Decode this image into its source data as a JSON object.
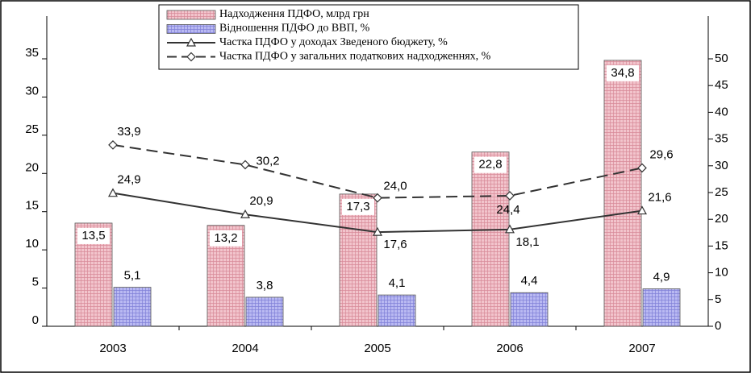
{
  "chart_data": {
    "type": "bar-line",
    "categories": [
      "2003",
      "2004",
      "2005",
      "2006",
      "2007"
    ],
    "series": [
      {
        "name": "Надходження ПДФО, млрд грн",
        "type": "bar",
        "color": "#f2c4cc",
        "values": [
          13.5,
          13.2,
          17.3,
          22.8,
          34.8
        ],
        "value_labels": [
          "13,5",
          "13,2",
          "17,3",
          "22,8",
          "34,8"
        ]
      },
      {
        "name": "Відношення ПДФО до ВВП, %",
        "type": "bar",
        "color": "#b9b9f2",
        "values": [
          5.1,
          3.8,
          4.1,
          4.4,
          4.9
        ],
        "value_labels": [
          "5,1",
          "3,8",
          "4,1",
          "4,4",
          "4,9"
        ]
      },
      {
        "name": "Частка ПДФО у доходах Зведеного бюджету, %",
        "type": "line",
        "axis": "y2",
        "color": "#333333",
        "marker": "triangle",
        "values": [
          24.9,
          20.9,
          17.6,
          18.1,
          21.6
        ],
        "value_labels": [
          "24,9",
          "20,9",
          "17,6",
          "18,1",
          "21,6"
        ]
      },
      {
        "name": "Частка ПДФО у загальних податкових надходженнях, %",
        "type": "line",
        "axis": "y2",
        "color": "#333333",
        "marker": "diamond",
        "dashed": true,
        "values": [
          33.9,
          30.2,
          24.0,
          24.4,
          29.6
        ],
        "value_labels": [
          "33,9",
          "30,2",
          "24,0",
          "24,4",
          "29,6"
        ]
      }
    ],
    "ylim": [
      0,
      35
    ],
    "yticks": [
      0,
      5,
      10,
      15,
      20,
      25,
      30,
      35
    ],
    "y2lim": [
      0,
      50
    ],
    "y2ticks": [
      0,
      5,
      10,
      15,
      20,
      25,
      30,
      35,
      40,
      45,
      50
    ]
  }
}
